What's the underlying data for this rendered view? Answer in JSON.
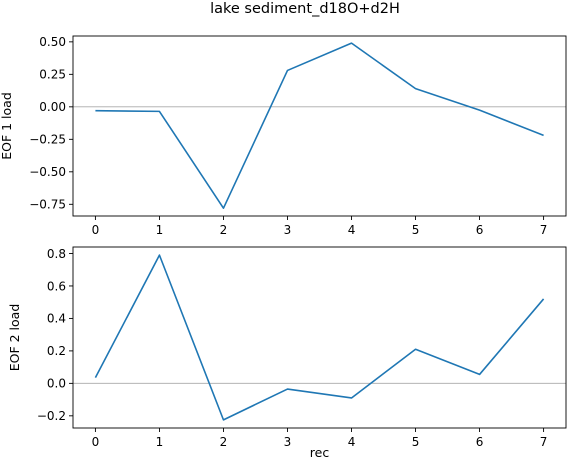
{
  "figure": {
    "title": "lake sediment_d18O+d2H"
  },
  "chart_data": [
    {
      "type": "line",
      "title": "lake sediment_d18O+d2H",
      "xlabel": "",
      "ylabel": "EOF 1 load",
      "x": [
        0,
        1,
        2,
        3,
        4,
        5,
        6,
        7
      ],
      "series": [
        {
          "values": [
            -0.03,
            -0.035,
            -0.78,
            0.28,
            0.49,
            0.14,
            -0.025,
            -0.22
          ]
        }
      ],
      "xlim": [
        -0.35,
        7.35
      ],
      "ylim": [
        -0.84,
        0.545
      ],
      "xticks": [
        0,
        1,
        2,
        3,
        4,
        5,
        6,
        7
      ],
      "yticks": [
        -0.75,
        -0.5,
        -0.25,
        0.0,
        0.25,
        0.5
      ],
      "ytick_labels": [
        "−0.75",
        "−0.50",
        "−0.25",
        "0.00",
        "0.25",
        "0.50"
      ],
      "reference_line": 0,
      "grid": false,
      "line_color": "#1f77b4",
      "reference_color": "#a9a9a9"
    },
    {
      "type": "line",
      "xlabel": "rec",
      "ylabel": "EOF 2 load",
      "x": [
        0,
        1,
        2,
        3,
        4,
        5,
        6,
        7
      ],
      "series": [
        {
          "values": [
            0.035,
            0.79,
            -0.225,
            -0.035,
            -0.09,
            0.21,
            0.055,
            0.52
          ]
        }
      ],
      "xlim": [
        -0.35,
        7.35
      ],
      "ylim": [
        -0.275,
        0.84
      ],
      "xticks": [
        0,
        1,
        2,
        3,
        4,
        5,
        6,
        7
      ],
      "yticks": [
        -0.2,
        0.0,
        0.2,
        0.4,
        0.6,
        0.8
      ],
      "ytick_labels": [
        "−0.2",
        "0.0",
        "0.2",
        "0.4",
        "0.6",
        "0.8"
      ],
      "reference_line": 0,
      "grid": false,
      "line_color": "#1f77b4",
      "reference_color": "#a9a9a9"
    }
  ]
}
